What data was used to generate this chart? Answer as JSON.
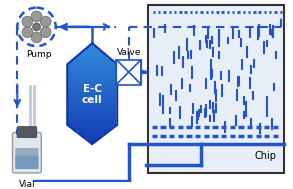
{
  "bg_color": "#ffffff",
  "blue": "#2255cc",
  "blue_dark": "#1133aa",
  "blue_mid": "#3366dd",
  "chip_bg": "#e8eef8",
  "pump_label": "Pump",
  "valve_label": "Valve",
  "ec_label1": "E-C",
  "ec_label2": "cell",
  "vial_label": "Vial",
  "chip_label": "Chip",
  "figsize": [
    2.93,
    1.89
  ],
  "dpi": 100
}
